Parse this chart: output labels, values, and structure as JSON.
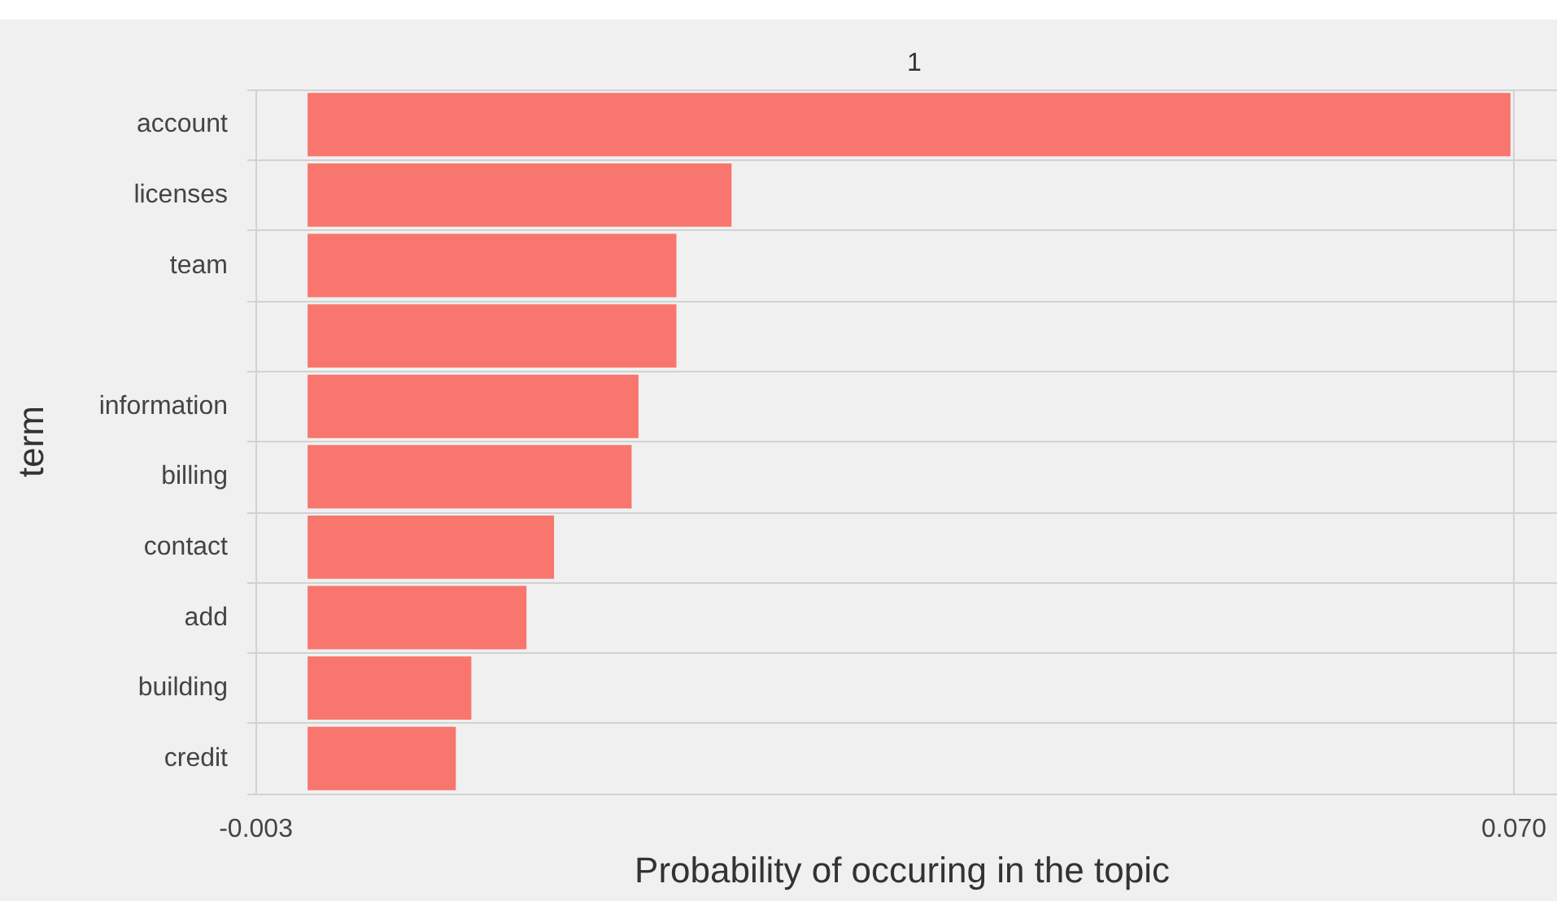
{
  "chart_data": {
    "type": "bar",
    "orientation": "horizontal",
    "title": "1",
    "xlabel": "Probability of occuring in the topic",
    "ylabel": "term",
    "categories": [
      "account",
      "licenses",
      "team",
      null,
      "information",
      "billing",
      "contact",
      "add",
      "building",
      "credit"
    ],
    "values": [
      0.0698,
      0.0246,
      0.0214,
      0.0214,
      0.0192,
      0.0188,
      0.0143,
      0.0127,
      0.0095,
      0.0086
    ],
    "color": "#f8766d",
    "xlim": [
      -0.0035,
      0.0725
    ],
    "xticks": [
      -0.003,
      {
        "value": 0.07,
        "label": "0.070"
      }
    ],
    "grid": true
  }
}
